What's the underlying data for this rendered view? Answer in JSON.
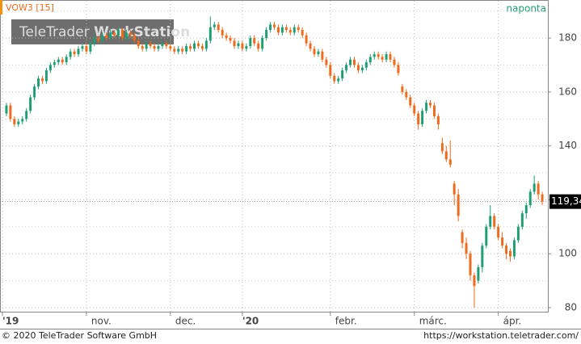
{
  "chart_data": {
    "type": "candlestick",
    "symbol": "VOW3 [15]",
    "interval": "naponta",
    "watermark_left": "TeleTrader",
    "watermark_right": "WorkStation",
    "footer_left": "© 2020 TeleTrader Software GmbH",
    "footer_right": "https://workstation.teletrader.com/",
    "up_color": "#1f9e74",
    "down_color": "#ee6a1c",
    "accent_color": "#f39200",
    "last_price": 119.34,
    "last_price_label": "119,34",
    "ylim": [
      78.5,
      193.8
    ],
    "yticks": [
      80,
      100,
      120,
      140,
      160,
      180
    ],
    "minor_yticks": [
      90,
      110,
      130,
      150,
      170,
      190
    ],
    "grid": true,
    "xlim": [
      -1,
      135.4
    ],
    "xticks": [
      {
        "value": -1,
        "label": "'19"
      },
      {
        "value": 20,
        "label": "nov."
      },
      {
        "value": 41,
        "label": "dec."
      },
      {
        "value": 59,
        "label": "'20"
      },
      {
        "value": 81,
        "label": "febr."
      },
      {
        "value": 102,
        "label": "márc."
      },
      {
        "value": 123,
        "label": "ápr."
      }
    ],
    "ohlc": [
      [
        152,
        156,
        151,
        155
      ],
      [
        155,
        156,
        149,
        150
      ],
      [
        150,
        151,
        147,
        148
      ],
      [
        148,
        150,
        147,
        149
      ],
      [
        149,
        151,
        148,
        150
      ],
      [
        150,
        154,
        149,
        153
      ],
      [
        153,
        159,
        152,
        158
      ],
      [
        158,
        163,
        157,
        162
      ],
      [
        162,
        166,
        161,
        165
      ],
      [
        165,
        166,
        163,
        164
      ],
      [
        164,
        169,
        163,
        168
      ],
      [
        168,
        171,
        167,
        170
      ],
      [
        170,
        172,
        169,
        171
      ],
      [
        171,
        173,
        170,
        172
      ],
      [
        172,
        173,
        170,
        171
      ],
      [
        171,
        174,
        170,
        173
      ],
      [
        173,
        176,
        172,
        175
      ],
      [
        175,
        176,
        173,
        174
      ],
      [
        174,
        177,
        173,
        176
      ],
      [
        176,
        178,
        175,
        177
      ],
      [
        177,
        178,
        174,
        175
      ],
      [
        175,
        179,
        174,
        178
      ],
      [
        178,
        181,
        177,
        180
      ],
      [
        180,
        181,
        178,
        179
      ],
      [
        179,
        182,
        178,
        181
      ],
      [
        181,
        182,
        179,
        180
      ],
      [
        180,
        183,
        179,
        182
      ],
      [
        182,
        183,
        180,
        181
      ],
      [
        181,
        184,
        180,
        183
      ],
      [
        183,
        184,
        179,
        180
      ],
      [
        180,
        183,
        179,
        182
      ],
      [
        182,
        183,
        180,
        181
      ],
      [
        181,
        182,
        178,
        179
      ],
      [
        179,
        180,
        176,
        177
      ],
      [
        177,
        178,
        175,
        176
      ],
      [
        176,
        179,
        175,
        178
      ],
      [
        178,
        179,
        176,
        177
      ],
      [
        177,
        178,
        175,
        176
      ],
      [
        176,
        178,
        175,
        177
      ],
      [
        177,
        179,
        176,
        178
      ],
      [
        178,
        179,
        176,
        177
      ],
      [
        177,
        178,
        175,
        176
      ],
      [
        176,
        177,
        174,
        175
      ],
      [
        175,
        177,
        174,
        176
      ],
      [
        176,
        177,
        174,
        175
      ],
      [
        175,
        178,
        174,
        177
      ],
      [
        177,
        178,
        175,
        176
      ],
      [
        176,
        179,
        175,
        178
      ],
      [
        178,
        179,
        176,
        177
      ],
      [
        177,
        178,
        175,
        176
      ],
      [
        176,
        180,
        175,
        179
      ],
      [
        179,
        188,
        178,
        184
      ],
      [
        184,
        186,
        183,
        185
      ],
      [
        185,
        186,
        182,
        183
      ],
      [
        183,
        184,
        180,
        181
      ],
      [
        181,
        182,
        179,
        180
      ],
      [
        180,
        181,
        178,
        179
      ],
      [
        179,
        180,
        176,
        177
      ],
      [
        177,
        179,
        176,
        178
      ],
      [
        178,
        179,
        175,
        176
      ],
      [
        176,
        178,
        175,
        177
      ],
      [
        177,
        181,
        176,
        180
      ],
      [
        180,
        181,
        177,
        178
      ],
      [
        178,
        179,
        175,
        176
      ],
      [
        176,
        181,
        175,
        180
      ],
      [
        180,
        184,
        179,
        183
      ],
      [
        183,
        186,
        182,
        185
      ],
      [
        185,
        186,
        183,
        184
      ],
      [
        184,
        185,
        181,
        182
      ],
      [
        182,
        185,
        181,
        184
      ],
      [
        184,
        185,
        182,
        183
      ],
      [
        183,
        184,
        181,
        182
      ],
      [
        182,
        185,
        181,
        184
      ],
      [
        184,
        185,
        182,
        183
      ],
      [
        183,
        184,
        180,
        181
      ],
      [
        181,
        182,
        177,
        178
      ],
      [
        178,
        179,
        175,
        176
      ],
      [
        176,
        177,
        173,
        174
      ],
      [
        174,
        176,
        173,
        175
      ],
      [
        175,
        176,
        171,
        172
      ],
      [
        172,
        173,
        169,
        170
      ],
      [
        170,
        171,
        165,
        166
      ],
      [
        166,
        167,
        163,
        164
      ],
      [
        164,
        166,
        163,
        165
      ],
      [
        165,
        169,
        164,
        168
      ],
      [
        168,
        171,
        167,
        170
      ],
      [
        170,
        173,
        169,
        172
      ],
      [
        172,
        173,
        169,
        170
      ],
      [
        170,
        171,
        167,
        168
      ],
      [
        168,
        170,
        167,
        169
      ],
      [
        169,
        172,
        168,
        171
      ],
      [
        171,
        174,
        170,
        173
      ],
      [
        173,
        175,
        172,
        174
      ],
      [
        174,
        175,
        172,
        173
      ],
      [
        173,
        174,
        171,
        172
      ],
      [
        172,
        175,
        171,
        174
      ],
      [
        174,
        175,
        171,
        172
      ],
      [
        172,
        173,
        169,
        170
      ],
      [
        170,
        171,
        166,
        167
      ],
      [
        162,
        163,
        159,
        160
      ],
      [
        160,
        161,
        157,
        158
      ],
      [
        158,
        159,
        154,
        155
      ],
      [
        155,
        156,
        151,
        152
      ],
      [
        152,
        153,
        146,
        148
      ],
      [
        148,
        154,
        147,
        153
      ],
      [
        153,
        157,
        152,
        156
      ],
      [
        156,
        157,
        154,
        155
      ],
      [
        155,
        156,
        150,
        151
      ],
      [
        151,
        152,
        146,
        148
      ],
      [
        141,
        143,
        137,
        138
      ],
      [
        138,
        140,
        134,
        135
      ],
      [
        135,
        142,
        132,
        133
      ],
      [
        126,
        127,
        118,
        122
      ],
      [
        122,
        124,
        112,
        114
      ],
      [
        108,
        109,
        102,
        104
      ],
      [
        104,
        106,
        98,
        100
      ],
      [
        100,
        101,
        90,
        92
      ],
      [
        92,
        93,
        80,
        88
      ],
      [
        90,
        96,
        89,
        95
      ],
      [
        95,
        104,
        93,
        103
      ],
      [
        103,
        111,
        102,
        110
      ],
      [
        110,
        118,
        109,
        114
      ],
      [
        114,
        115,
        109,
        110
      ],
      [
        110,
        111,
        105,
        106
      ],
      [
        106,
        108,
        102,
        103
      ],
      [
        103,
        104,
        98,
        100
      ],
      [
        101,
        102,
        97,
        99
      ],
      [
        99,
        106,
        98,
        105
      ],
      [
        105,
        111,
        104,
        110
      ],
      [
        110,
        116,
        109,
        115
      ],
      [
        115,
        119,
        113,
        118
      ],
      [
        118,
        124,
        117,
        123
      ],
      [
        123,
        129,
        122,
        126
      ],
      [
        126,
        127,
        120,
        122
      ],
      [
        122,
        123,
        118,
        119.34
      ]
    ]
  }
}
